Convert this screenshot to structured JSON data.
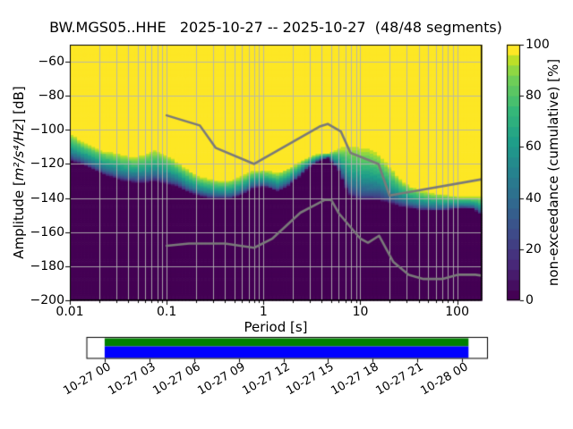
{
  "title": "BW.MGS05..HHE   2025-10-27 -- 2025-10-27  (48/48 segments)",
  "axes": {
    "xlabel": "Period [s]",
    "ylabel_prefix": "Amplitude [",
    "ylabel_math": "m²/s⁴/Hz",
    "ylabel_suffix": "] [dB]",
    "x_ticks": [
      {
        "label": "0.01",
        "period": 0.01
      },
      {
        "label": "0.1",
        "period": 0.1
      },
      {
        "label": "1",
        "period": 1
      },
      {
        "label": "10",
        "period": 10
      },
      {
        "label": "100",
        "period": 100
      }
    ],
    "y_ticks": [
      {
        "label": "−60",
        "value": -60
      },
      {
        "label": "−80",
        "value": -80
      },
      {
        "label": "−100",
        "value": -100
      },
      {
        "label": "−120",
        "value": -120
      },
      {
        "label": "−140",
        "value": -140
      },
      {
        "label": "−160",
        "value": -160
      },
      {
        "label": "−180",
        "value": -180
      },
      {
        "label": "−200",
        "value": -200
      }
    ]
  },
  "colorbar": {
    "label": "non-exceedance (cumulative) [%]",
    "ticks": [
      {
        "label": "0",
        "value": 0
      },
      {
        "label": "20",
        "value": 20
      },
      {
        "label": "40",
        "value": 40
      },
      {
        "label": "60",
        "value": 60
      },
      {
        "label": "80",
        "value": 80
      },
      {
        "label": "100",
        "value": 100
      }
    ],
    "levels": 25
  },
  "timeline": {
    "tick_labels": [
      "10-27 00",
      "10-27 03",
      "10-27 06",
      "10-27 09",
      "10-27 12",
      "10-27 15",
      "10-27 18",
      "10-27 21",
      "10-28 00"
    ],
    "bar_top_color": "#008000",
    "bar_bottom_color": "#0000ff"
  },
  "chart_data": {
    "type": "heatmap",
    "station_id": "BW.MGS05..HHE",
    "date_range": "2025-10-27 -- 2025-10-27",
    "segments_used": "48/48",
    "xscale": "log",
    "xlim_s": [
      0.01,
      179
    ],
    "ylim_db": [
      -200,
      -50
    ],
    "colorbar_range_pct": [
      0,
      100
    ],
    "cmap": "viridis",
    "grid_color": "#b2b2b2",
    "frame_color": "#000000",
    "noise_model_color": "#7a7a7a",
    "viridis_stops": [
      [
        0.0,
        68,
        1,
        84
      ],
      [
        0.125,
        72,
        40,
        120
      ],
      [
        0.25,
        62,
        74,
        137
      ],
      [
        0.375,
        49,
        104,
        142
      ],
      [
        0.5,
        38,
        130,
        142
      ],
      [
        0.625,
        31,
        158,
        137
      ],
      [
        0.75,
        53,
        183,
        121
      ],
      [
        0.875,
        110,
        206,
        88
      ],
      [
        0.938,
        160,
        219,
        57
      ],
      [
        0.969,
        202,
        225,
        31
      ],
      [
        1.0,
        253,
        231,
        37
      ]
    ],
    "distribution": {
      "gamma": 0.62,
      "periods_s": [
        0.01,
        0.013,
        0.017,
        0.022,
        0.028,
        0.036,
        0.047,
        0.06,
        0.075,
        0.095,
        0.125,
        0.16,
        0.21,
        0.27,
        0.35,
        0.45,
        0.6,
        0.8,
        1.05,
        1.4,
        1.8,
        2.3,
        2.9,
        3.7,
        4.7,
        6.0,
        7.6,
        9.7,
        12.4,
        15.8,
        20.0,
        26.0,
        33.0,
        43.0,
        55.0,
        70.0,
        90.0,
        115,
        147,
        179
      ],
      "db_at_100pct": [
        -102,
        -106,
        -109,
        -112,
        -113,
        -114.5,
        -115.5,
        -114,
        -111.5,
        -113.5,
        -118,
        -122.5,
        -127,
        -128.5,
        -129.5,
        -129.5,
        -127,
        -123.5,
        -123.5,
        -125,
        -122.5,
        -119,
        -116,
        -114,
        -113.5,
        -110.5,
        -108.5,
        -109.5,
        -110.5,
        -114,
        -121,
        -128.5,
        -133,
        -135.5,
        -137,
        -137.5,
        -138.5,
        -139,
        -139,
        -139
      ],
      "db_at_0pct": [
        -118,
        -120,
        -123,
        -126,
        -128,
        -130,
        -131,
        -131,
        -130,
        -131.5,
        -133,
        -136,
        -138.5,
        -140,
        -140.5,
        -140.5,
        -138,
        -134,
        -133.5,
        -136,
        -133,
        -128,
        -122.5,
        -118.2,
        -116.5,
        -124,
        -138.5,
        -141.5,
        -141.5,
        -141.5,
        -143,
        -145,
        -146,
        -147,
        -147.5,
        -147.5,
        -146.5,
        -146,
        -146.5,
        -150
      ]
    },
    "noise_models": {
      "nhnm": [
        [
          0.1,
          -91.5
        ],
        [
          0.22,
          -97.4
        ],
        [
          0.32,
          -110.5
        ],
        [
          0.8,
          -120
        ],
        [
          3.8,
          -98
        ],
        [
          4.6,
          -96.5
        ],
        [
          6.3,
          -101
        ],
        [
          7.9,
          -113.5
        ],
        [
          15.4,
          -120
        ],
        [
          20,
          -138.5
        ],
        [
          179,
          -129
        ]
      ],
      "nlnm": [
        [
          0.1,
          -168
        ],
        [
          0.17,
          -166.7
        ],
        [
          0.4,
          -166.7
        ],
        [
          0.8,
          -169.2
        ],
        [
          1.24,
          -163.7
        ],
        [
          2.4,
          -148.6
        ],
        [
          4.3,
          -141.1
        ],
        [
          5,
          -141.1
        ],
        [
          6,
          -149
        ],
        [
          10,
          -163.8
        ],
        [
          12,
          -166.2
        ],
        [
          15.6,
          -162.1
        ],
        [
          21.9,
          -177.5
        ],
        [
          31.6,
          -185
        ],
        [
          45,
          -187.5
        ],
        [
          70,
          -187.5
        ],
        [
          101,
          -185
        ],
        [
          154,
          -185
        ],
        [
          179,
          -185.5
        ]
      ]
    },
    "timeline_coverage": {
      "start": "10-27 00",
      "end": "10-28 00",
      "tick_every_hours": 3
    }
  }
}
